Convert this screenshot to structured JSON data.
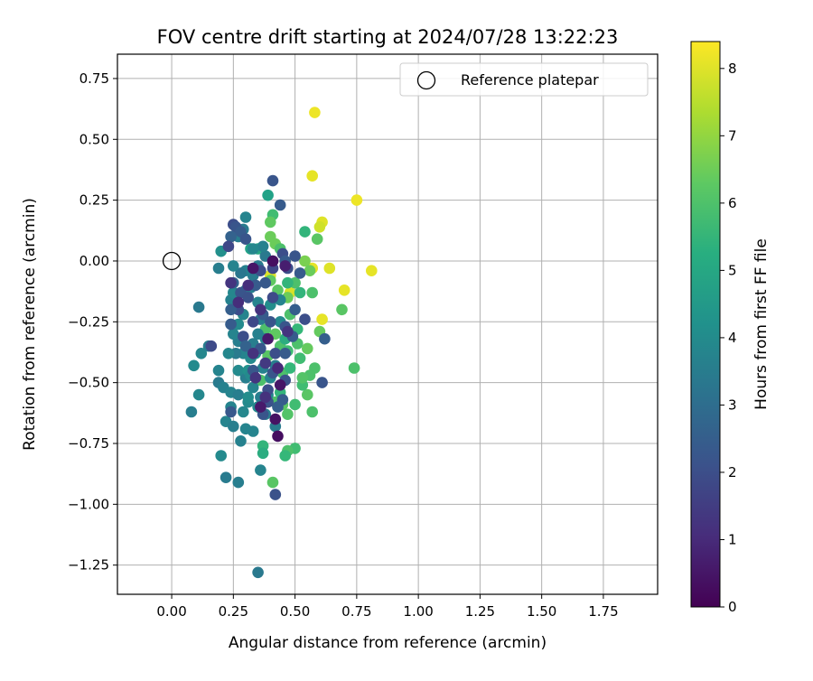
{
  "chart_data": {
    "type": "scatter",
    "title": "FOV centre drift starting at 2024/07/28 13:22:23",
    "xlabel": "Angular distance from reference (arcmin)",
    "ylabel": "Rotation from reference (arcmin)",
    "xlim": [
      -0.22,
      1.97
    ],
    "ylim": [
      -1.37,
      0.85
    ],
    "xticks": [
      0.0,
      0.25,
      0.5,
      0.75,
      1.0,
      1.25,
      1.5,
      1.75
    ],
    "xtick_labels": [
      "0.00",
      "0.25",
      "0.50",
      "0.75",
      "1.00",
      "1.25",
      "1.50",
      "1.75"
    ],
    "yticks": [
      0.75,
      0.5,
      0.25,
      0.0,
      -0.25,
      -0.5,
      -0.75,
      -1.0,
      -1.25
    ],
    "ytick_labels": [
      "0.75",
      "0.50",
      "0.25",
      "0.00",
      "−0.25",
      "−0.50",
      "−0.75",
      "−1.00",
      "−1.25"
    ],
    "grid": true,
    "legend": {
      "placement": "top-right",
      "entries": [
        "Reference platepar"
      ]
    },
    "reference_point": {
      "x": 0.0,
      "y": 0.0,
      "marker": "open-circle"
    },
    "colorbar": {
      "label": "Hours from first FF file",
      "min": 0,
      "max": 8.4,
      "ticks": [
        0,
        1,
        2,
        3,
        4,
        5,
        6,
        7,
        8
      ],
      "tick_labels": [
        "0",
        "1",
        "2",
        "3",
        "4",
        "5",
        "6",
        "7",
        "8"
      ],
      "colormap": "viridis"
    },
    "series": [
      {
        "points": [
          [
            0.58,
            0.61,
            8.2
          ],
          [
            0.57,
            0.35,
            8.1
          ],
          [
            0.75,
            0.25,
            8.2
          ],
          [
            0.61,
            0.16,
            8.0
          ],
          [
            0.6,
            0.14,
            7.8
          ],
          [
            0.81,
            -0.04,
            8.1
          ],
          [
            0.64,
            -0.03,
            8.0
          ],
          [
            0.57,
            -0.03,
            8.1
          ],
          [
            0.7,
            -0.12,
            8.1
          ],
          [
            0.61,
            -0.24,
            8.1
          ],
          [
            0.4,
            -0.06,
            8.0
          ],
          [
            0.29,
            -0.22,
            8.0
          ],
          [
            0.48,
            -0.13,
            7.9
          ],
          [
            0.59,
            0.09,
            6.2
          ],
          [
            0.54,
            0.12,
            5.5
          ],
          [
            0.39,
            0.27,
            4.8
          ],
          [
            0.41,
            0.19,
            5.8
          ],
          [
            0.4,
            0.16,
            6.3
          ],
          [
            0.4,
            0.1,
            6.5
          ],
          [
            0.42,
            0.07,
            6.5
          ],
          [
            0.44,
            0.05,
            6.0
          ],
          [
            0.35,
            0.05,
            5.0
          ],
          [
            0.32,
            0.05,
            4.8
          ],
          [
            0.54,
            0.0,
            6.7
          ],
          [
            0.56,
            -0.04,
            6.5
          ],
          [
            0.5,
            -0.09,
            6.0
          ],
          [
            0.52,
            -0.13,
            5.5
          ],
          [
            0.57,
            -0.13,
            6.0
          ],
          [
            0.69,
            -0.2,
            6.2
          ],
          [
            0.6,
            -0.29,
            6.4
          ],
          [
            0.58,
            -0.44,
            6.0
          ],
          [
            0.74,
            -0.44,
            6.0
          ],
          [
            0.56,
            -0.47,
            6.0
          ],
          [
            0.55,
            -0.55,
            6.2
          ],
          [
            0.57,
            -0.62,
            6.0
          ],
          [
            0.53,
            -0.51,
            5.8
          ],
          [
            0.5,
            -0.59,
            5.8
          ],
          [
            0.47,
            -0.63,
            6.1
          ],
          [
            0.45,
            -0.59,
            6.2
          ],
          [
            0.42,
            -0.58,
            6.0
          ],
          [
            0.41,
            -0.91,
            6.2
          ],
          [
            0.5,
            -0.77,
            5.8
          ],
          [
            0.47,
            -0.78,
            6.0
          ],
          [
            0.46,
            -0.8,
            5.6
          ],
          [
            0.37,
            -0.76,
            5.5
          ],
          [
            0.37,
            -0.79,
            5.2
          ],
          [
            0.36,
            -0.49,
            6.0
          ],
          [
            0.39,
            -0.39,
            6.2
          ],
          [
            0.44,
            -0.35,
            6.0
          ],
          [
            0.47,
            -0.37,
            5.8
          ],
          [
            0.51,
            -0.28,
            5.6
          ],
          [
            0.48,
            -0.22,
            6.0
          ],
          [
            0.47,
            -0.15,
            6.5
          ],
          [
            0.43,
            -0.12,
            6.2
          ],
          [
            0.4,
            -0.08,
            6.3
          ],
          [
            0.45,
            -0.46,
            6.0
          ],
          [
            0.52,
            -0.4,
            5.8
          ],
          [
            0.48,
            -0.44,
            5.6
          ],
          [
            0.53,
            -0.48,
            6.1
          ],
          [
            0.51,
            -0.34,
            6.0
          ],
          [
            0.44,
            -0.54,
            5.5
          ],
          [
            0.46,
            -0.32,
            5.2
          ],
          [
            0.42,
            -0.3,
            6.3
          ],
          [
            0.38,
            -0.28,
            6.0
          ],
          [
            0.47,
            -0.09,
            5.5
          ],
          [
            0.55,
            -0.36,
            6.4
          ],
          [
            0.35,
            -1.28,
            3.4
          ],
          [
            0.27,
            -0.91,
            3.6
          ],
          [
            0.22,
            -0.89,
            3.5
          ],
          [
            0.2,
            -0.8,
            4.0
          ],
          [
            0.28,
            -0.74,
            3.7
          ],
          [
            0.22,
            -0.66,
            3.8
          ],
          [
            0.25,
            -0.68,
            3.6
          ],
          [
            0.08,
            -0.62,
            3.6
          ],
          [
            0.11,
            -0.55,
            3.9
          ],
          [
            0.09,
            -0.43,
            4.0
          ],
          [
            0.12,
            -0.38,
            3.9
          ],
          [
            0.15,
            -0.35,
            3.6
          ],
          [
            0.19,
            -0.45,
            3.8
          ],
          [
            0.19,
            -0.5,
            3.5
          ],
          [
            0.21,
            -0.52,
            3.7
          ],
          [
            0.24,
            -0.54,
            3.8
          ],
          [
            0.27,
            -0.55,
            3.6
          ],
          [
            0.24,
            -0.6,
            3.8
          ],
          [
            0.29,
            -0.62,
            3.9
          ],
          [
            0.31,
            -0.58,
            4.0
          ],
          [
            0.33,
            -0.52,
            3.8
          ],
          [
            0.3,
            -0.48,
            3.6
          ],
          [
            0.27,
            -0.45,
            4.0
          ],
          [
            0.31,
            -0.45,
            4.2
          ],
          [
            0.32,
            -0.4,
            4.0
          ],
          [
            0.29,
            -0.38,
            3.8
          ],
          [
            0.26,
            -0.38,
            3.5
          ],
          [
            0.23,
            -0.38,
            3.9
          ],
          [
            0.27,
            -0.33,
            3.6
          ],
          [
            0.25,
            -0.3,
            3.8
          ],
          [
            0.24,
            -0.26,
            3.7
          ],
          [
            0.27,
            -0.26,
            4.0
          ],
          [
            0.29,
            -0.22,
            3.8
          ],
          [
            0.11,
            -0.19,
            3.4
          ],
          [
            0.24,
            -0.16,
            3.7
          ],
          [
            0.25,
            -0.13,
            3.9
          ],
          [
            0.3,
            -0.12,
            3.5
          ],
          [
            0.32,
            -0.11,
            3.6
          ],
          [
            0.35,
            -0.17,
            3.8
          ],
          [
            0.33,
            -0.06,
            3.5
          ],
          [
            0.3,
            -0.04,
            3.7
          ],
          [
            0.28,
            -0.05,
            3.3
          ],
          [
            0.19,
            -0.03,
            3.6
          ],
          [
            0.25,
            -0.02,
            3.8
          ],
          [
            0.35,
            -0.02,
            3.5
          ],
          [
            0.41,
            0.0,
            3.6
          ],
          [
            0.38,
            0.02,
            3.4
          ],
          [
            0.37,
            0.06,
            3.7
          ],
          [
            0.33,
            0.05,
            3.9
          ],
          [
            0.27,
            0.1,
            3.6
          ],
          [
            0.29,
            0.13,
            3.5
          ],
          [
            0.3,
            0.18,
            3.8
          ],
          [
            0.37,
            -0.44,
            3.7
          ],
          [
            0.4,
            -0.48,
            3.8
          ],
          [
            0.36,
            -0.56,
            3.6
          ],
          [
            0.33,
            -0.7,
            3.8
          ],
          [
            0.36,
            -0.86,
            3.8
          ],
          [
            0.42,
            -0.68,
            3.5
          ],
          [
            0.38,
            -0.63,
            3.6
          ],
          [
            0.39,
            -0.55,
            3.9
          ],
          [
            0.33,
            -0.34,
            3.6
          ],
          [
            0.38,
            -0.32,
            3.8
          ],
          [
            0.42,
            -0.43,
            3.6
          ],
          [
            0.36,
            -0.24,
            3.5
          ],
          [
            0.35,
            -0.3,
            3.7
          ],
          [
            0.44,
            -0.25,
            4.0
          ],
          [
            0.44,
            -0.16,
            3.8
          ],
          [
            0.4,
            -0.18,
            4.1
          ],
          [
            0.35,
            -0.6,
            4.0
          ],
          [
            0.3,
            -0.69,
            3.8
          ],
          [
            0.34,
            -0.38,
            4.1
          ],
          [
            0.32,
            -0.47,
            4.0
          ],
          [
            0.31,
            -0.56,
            4.1
          ],
          [
            0.2,
            0.04,
            4.2
          ],
          [
            0.41,
            0.33,
            2.2
          ],
          [
            0.44,
            0.23,
            2.4
          ],
          [
            0.25,
            0.15,
            2.0
          ],
          [
            0.26,
            0.14,
            2.2
          ],
          [
            0.28,
            0.12,
            2.4
          ],
          [
            0.24,
            0.1,
            2.6
          ],
          [
            0.3,
            0.09,
            2.2
          ],
          [
            0.23,
            0.06,
            1.8
          ],
          [
            0.45,
            0.03,
            2.0
          ],
          [
            0.46,
            0.0,
            2.4
          ],
          [
            0.47,
            -0.03,
            2.0
          ],
          [
            0.5,
            0.02,
            2.2
          ],
          [
            0.52,
            -0.05,
            2.4
          ],
          [
            0.41,
            -0.03,
            1.8
          ],
          [
            0.36,
            -0.04,
            2.0
          ],
          [
            0.34,
            -0.1,
            2.4
          ],
          [
            0.28,
            -0.13,
            2.2
          ],
          [
            0.25,
            -0.09,
            2.6
          ],
          [
            0.27,
            -0.2,
            2.0
          ],
          [
            0.37,
            -0.22,
            2.4
          ],
          [
            0.4,
            -0.25,
            2.2
          ],
          [
            0.33,
            -0.25,
            1.8
          ],
          [
            0.29,
            -0.31,
            2.0
          ],
          [
            0.24,
            -0.26,
            2.4
          ],
          [
            0.3,
            -0.35,
            2.6
          ],
          [
            0.36,
            -0.36,
            2.2
          ],
          [
            0.42,
            -0.38,
            2.0
          ],
          [
            0.46,
            -0.38,
            2.4
          ],
          [
            0.41,
            -0.46,
            2.2
          ],
          [
            0.39,
            -0.53,
            2.0
          ],
          [
            0.33,
            -0.45,
            2.3
          ],
          [
            0.46,
            -0.49,
            2.1
          ],
          [
            0.45,
            -0.57,
            2.4
          ],
          [
            0.43,
            -0.6,
            2.5
          ],
          [
            0.37,
            -0.63,
            2.2
          ],
          [
            0.42,
            -0.96,
            2.1
          ],
          [
            0.16,
            -0.35,
            1.9
          ],
          [
            0.24,
            -0.2,
            2.5
          ],
          [
            0.31,
            -0.15,
            2.1
          ],
          [
            0.38,
            -0.09,
            2.3
          ],
          [
            0.41,
            -0.15,
            1.9
          ],
          [
            0.46,
            -0.27,
            2.2
          ],
          [
            0.49,
            -0.31,
            2.4
          ],
          [
            0.54,
            -0.24,
            2.0
          ],
          [
            0.5,
            -0.2,
            2.5
          ],
          [
            0.61,
            -0.5,
            2.2
          ],
          [
            0.62,
            -0.32,
            2.5
          ],
          [
            0.24,
            -0.62,
            2.3
          ],
          [
            0.39,
            -0.58,
            2.1
          ],
          [
            0.41,
            0.0,
            0.3
          ],
          [
            0.42,
            -0.65,
            0.4
          ],
          [
            0.43,
            -0.72,
            0.3
          ],
          [
            0.33,
            -0.03,
            0.5
          ],
          [
            0.36,
            -0.6,
            0.6
          ],
          [
            0.39,
            -0.32,
            0.6
          ],
          [
            0.46,
            -0.02,
            0.7
          ],
          [
            0.44,
            -0.51,
            0.5
          ],
          [
            0.31,
            -0.1,
            1.1
          ],
          [
            0.36,
            -0.2,
            1.2
          ],
          [
            0.47,
            -0.29,
            1.3
          ],
          [
            0.43,
            -0.44,
            1.0
          ],
          [
            0.38,
            -0.42,
            1.4
          ],
          [
            0.33,
            -0.38,
            1.2
          ],
          [
            0.24,
            -0.09,
            1.3
          ],
          [
            0.27,
            -0.17,
            1.1
          ],
          [
            0.34,
            -0.48,
            1.3
          ],
          [
            0.38,
            -0.56,
            1.2
          ]
        ]
      }
    ]
  }
}
